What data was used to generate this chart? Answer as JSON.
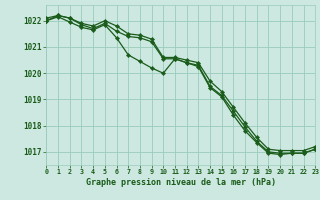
{
  "bg_color": "#cce8e0",
  "grid_color": "#99ccbb",
  "line_color": "#1a5c1a",
  "marker_color": "#1a5c1a",
  "xlabel": "Graphe pression niveau de la mer (hPa)",
  "xlim": [
    0,
    23
  ],
  "ylim": [
    1016.5,
    1022.6
  ],
  "yticks": [
    1017,
    1018,
    1019,
    1020,
    1021,
    1022
  ],
  "xticks": [
    0,
    1,
    2,
    3,
    4,
    5,
    6,
    7,
    8,
    9,
    10,
    11,
    12,
    13,
    14,
    15,
    16,
    17,
    18,
    19,
    20,
    21,
    22,
    23
  ],
  "series1": [
    1022.1,
    1022.2,
    1022.1,
    1021.9,
    1021.8,
    1022.0,
    1021.8,
    1021.5,
    1021.45,
    1021.3,
    1020.6,
    1020.6,
    1020.5,
    1020.4,
    1019.7,
    1019.3,
    1018.7,
    1018.1,
    1017.55,
    1017.1,
    1017.05,
    1017.05,
    1017.05,
    1017.2
  ],
  "series2": [
    1022.0,
    1022.2,
    1022.1,
    1021.85,
    1021.7,
    1021.9,
    1021.6,
    1021.4,
    1021.35,
    1021.2,
    1020.55,
    1020.55,
    1020.4,
    1020.3,
    1019.5,
    1019.15,
    1018.55,
    1017.95,
    1017.4,
    1017.0,
    1016.95,
    1016.95,
    1016.95,
    1017.1
  ],
  "series3": [
    1022.0,
    1022.15,
    1021.95,
    1021.75,
    1021.65,
    1021.85,
    1021.35,
    1020.7,
    1020.45,
    1020.2,
    1020.0,
    1020.55,
    1020.4,
    1020.25,
    1019.45,
    1019.1,
    1018.4,
    1017.8,
    1017.35,
    1016.95,
    1016.9,
    1016.95,
    1016.95,
    1017.1
  ]
}
